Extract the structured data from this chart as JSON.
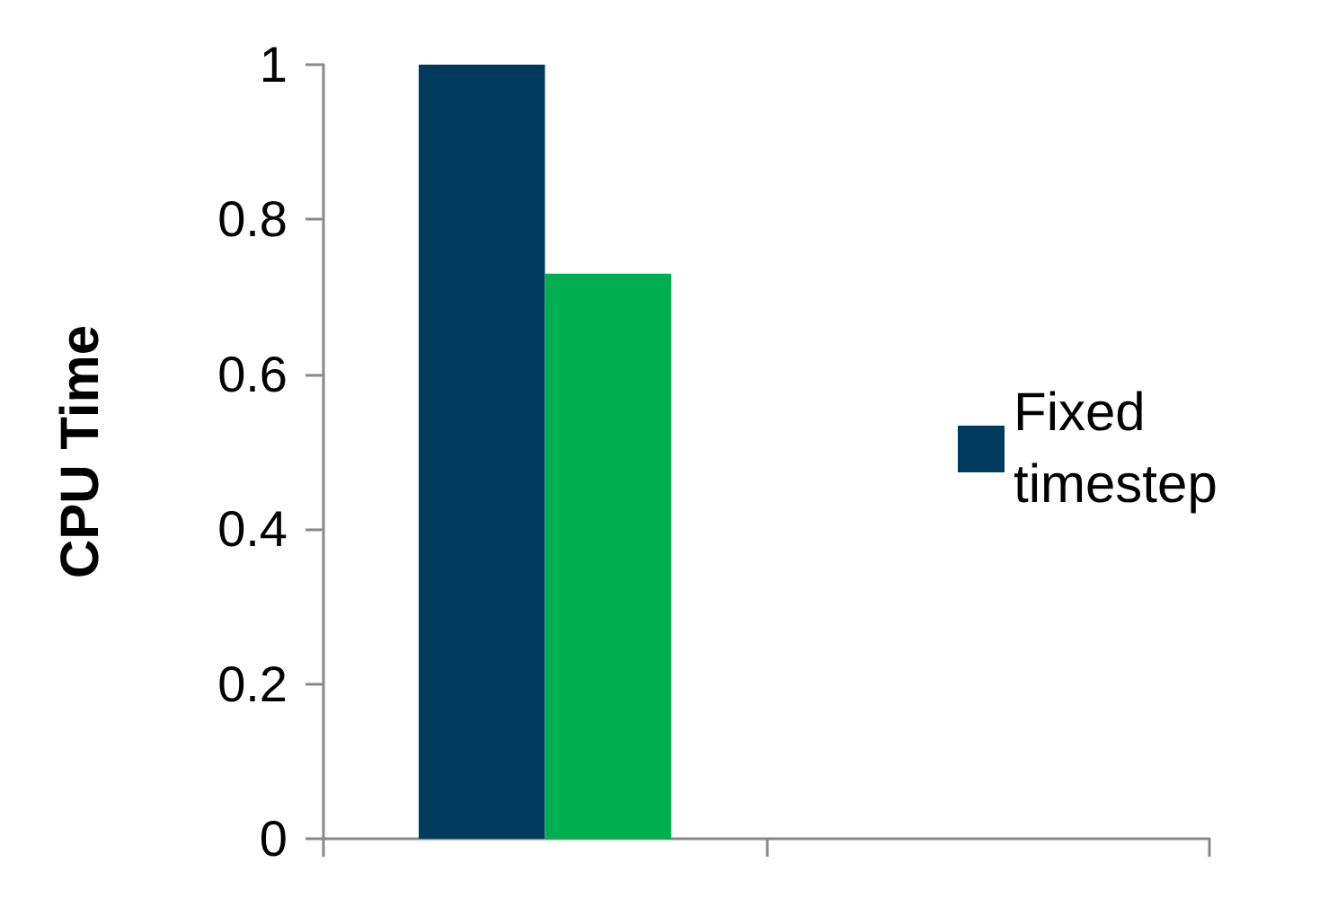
{
  "chart_data": {
    "type": "bar",
    "ylabel": "CPU Time",
    "categories": [
      null,
      null
    ],
    "series": [
      {
        "name": "Fixed timestep",
        "color": "#003a5d",
        "values": [
          1,
          null
        ]
      },
      {
        "color": "#00b050",
        "values": [
          0.73,
          null
        ]
      }
    ],
    "ylim": [
      0,
      1
    ],
    "yticks": [
      0,
      0.2,
      0.4,
      0.6,
      0.8,
      1
    ],
    "grid": false,
    "legend": "right"
  }
}
